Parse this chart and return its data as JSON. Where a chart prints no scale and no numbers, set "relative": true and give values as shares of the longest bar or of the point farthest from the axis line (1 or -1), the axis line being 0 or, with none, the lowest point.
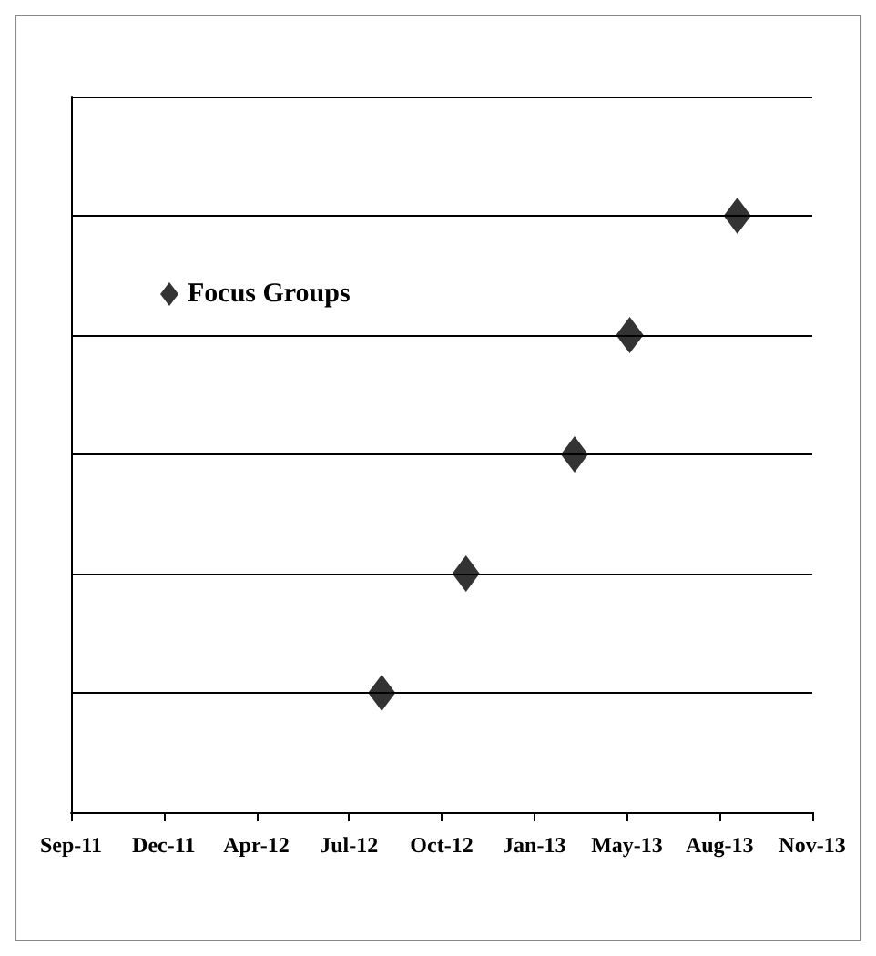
{
  "chart_data": {
    "type": "scatter",
    "relative": true,
    "x": [
      "2012-08-17",
      "2012-11-15",
      "2013-03-11",
      "2013-05-09",
      "2013-09-01"
    ],
    "series": [
      {
        "name": "Focus Groups",
        "color": "#000000",
        "values": [
          0.2,
          0.4,
          0.6,
          0.8,
          1.0
        ]
      }
    ],
    "xlim": [
      "2011-09-20",
      "2013-11-20"
    ],
    "xticks": [
      {
        "value": "2011-09-20",
        "label": "Sep-11"
      },
      {
        "value": "2011-12-28",
        "label": "Dec-11"
      },
      {
        "value": "2012-04-05",
        "label": "Apr-12"
      },
      {
        "value": "2012-07-13",
        "label": "Jul-12"
      },
      {
        "value": "2012-10-20",
        "label": "Oct-12"
      },
      {
        "value": "2013-01-27",
        "label": "Jan-13"
      },
      {
        "value": "2013-05-06",
        "label": "May-13"
      },
      {
        "value": "2013-08-13",
        "label": "Aug-13"
      },
      {
        "value": "2013-11-20",
        "label": "Nov-13"
      }
    ],
    "grid": "y",
    "legend": "top left",
    "marker": "diamond"
  }
}
